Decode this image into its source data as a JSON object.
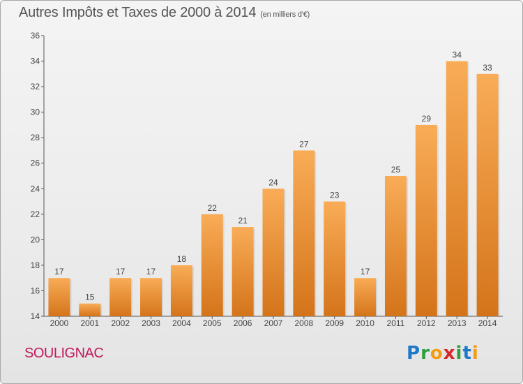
{
  "header": {
    "title": "Autres Impôts et Taxes de 2000 à 2014",
    "subtitle": "(en milliers d'€)"
  },
  "footer": {
    "commune": "SOULIGNAC",
    "logo": {
      "letters": [
        "P",
        "r",
        "o",
        "x",
        "i",
        "t",
        "i"
      ],
      "colors": [
        "#1f78c8",
        "#2e9e3e",
        "#f39c12",
        "#d62728",
        "#2e9e3e",
        "#1f78c8",
        "#f39c12"
      ]
    }
  },
  "chart_data": {
    "type": "bar",
    "categories": [
      "2000",
      "2001",
      "2002",
      "2003",
      "2004",
      "2005",
      "2006",
      "2007",
      "2008",
      "2009",
      "2010",
      "2011",
      "2012",
      "2013",
      "2014"
    ],
    "values": [
      17,
      15,
      17,
      17,
      18,
      22,
      21,
      24,
      27,
      23,
      17,
      25,
      29,
      34,
      33
    ],
    "ylim": [
      14,
      36
    ],
    "yticks": [
      14,
      16,
      18,
      20,
      22,
      24,
      26,
      28,
      30,
      32,
      34,
      36
    ],
    "grid": false,
    "bar_color": "#f08a24",
    "bar_color_light": "#f9ac57",
    "bar_color_dark": "#d4741a"
  }
}
